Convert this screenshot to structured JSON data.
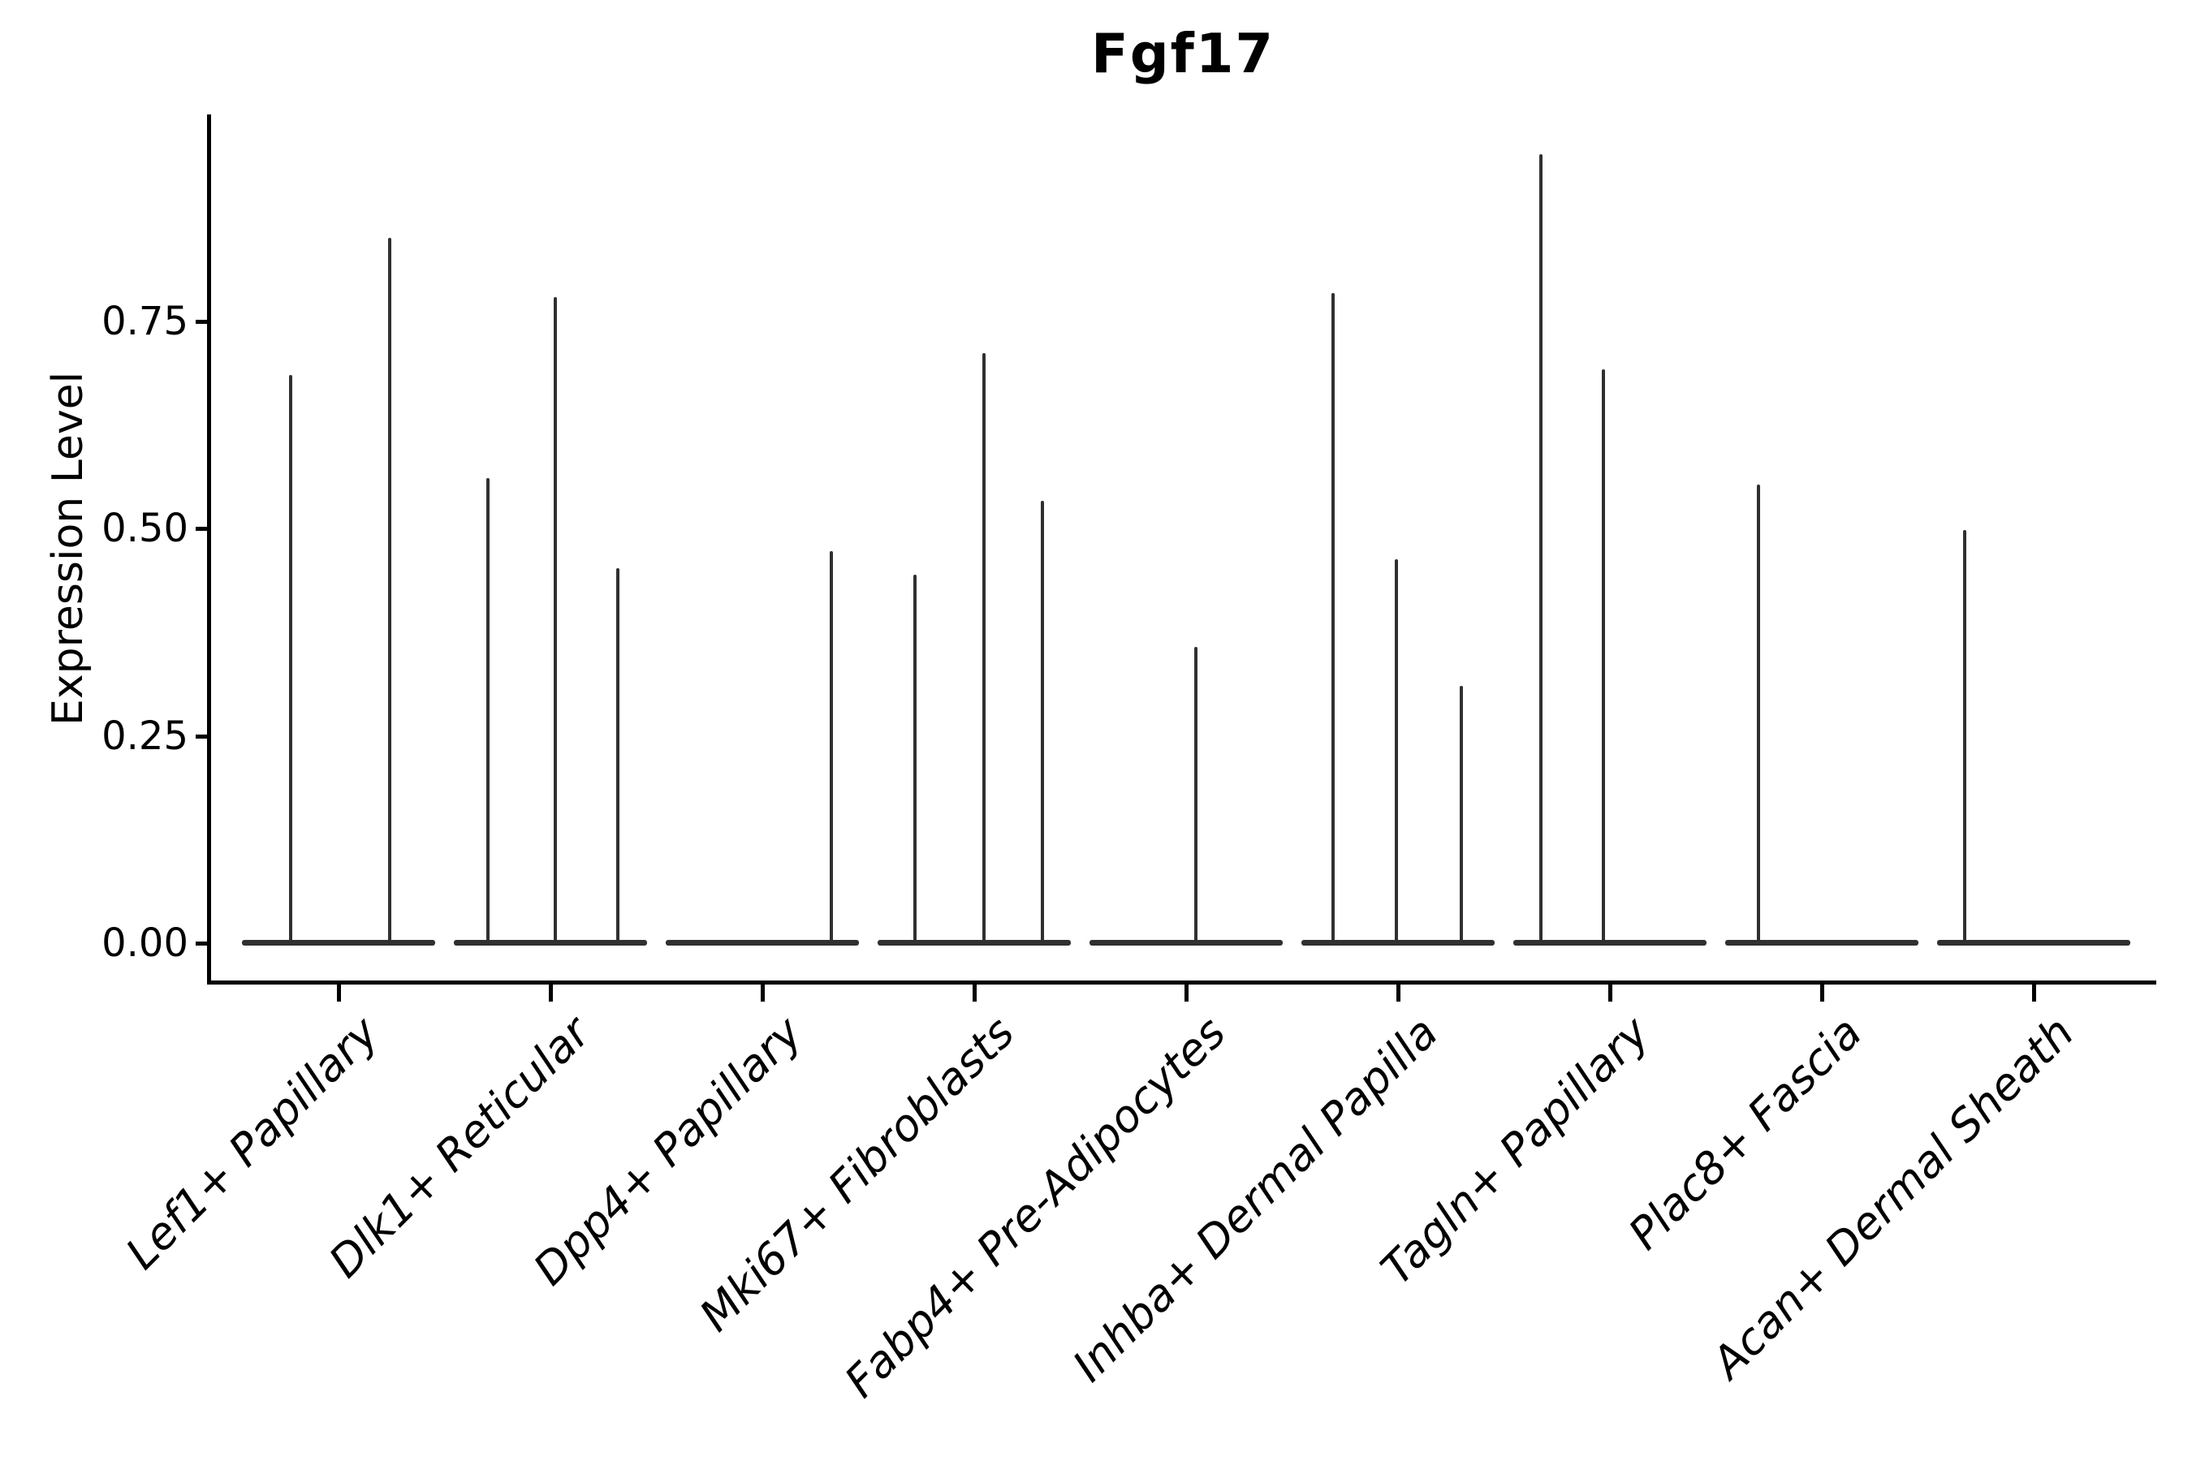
{
  "title": "Fgf17",
  "y_axis": {
    "label": "Expression Level",
    "tick_labels": [
      "0.75",
      "0.50",
      "0.25",
      "0.00"
    ]
  },
  "chart_data": {
    "type": "violin",
    "title": "Fgf17",
    "xlabel": "",
    "ylabel": "Expression Level",
    "ylim": [
      0,
      1.0
    ],
    "yticks": [
      0.75,
      0.5,
      0.25,
      0.0
    ],
    "grid": false,
    "legend": "none",
    "style": "collapsed violins: flat baseline at 0 with thin vertical density spikes",
    "line_color": "#303030",
    "axis_color": "#000000",
    "background": "#ffffff",
    "categories": [
      "Lef1+ Papillary",
      "Dlk1+ Reticular",
      "Dpp4+ Papillary",
      "Mki67+ Fibroblasts",
      "Fabp4+ Pre-Adipocytes",
      "Inhba+ Dermal Papilla",
      "Tagln+ Papillary",
      "Plac8+ Fascia",
      "Acan+ Dermal Sheath"
    ],
    "violins": [
      {
        "category": "Lef1+ Papillary",
        "baseline": 0,
        "spikes": [
          {
            "dx": -59,
            "max": 0.685
          },
          {
            "dx": 63,
            "max": 0.85
          }
        ]
      },
      {
        "category": "Dlk1+ Reticular",
        "baseline": 0,
        "spikes": [
          {
            "dx": -77,
            "max": 0.561
          },
          {
            "dx": 6,
            "max": 0.779
          },
          {
            "dx": 83,
            "max": 0.452
          }
        ]
      },
      {
        "category": "Dpp4+ Papillary",
        "baseline": 0,
        "spikes": [
          {
            "dx": 85,
            "max": 0.473
          }
        ]
      },
      {
        "category": "Mki67+ Fibroblasts",
        "baseline": 0,
        "spikes": [
          {
            "dx": -73,
            "max": 0.444
          },
          {
            "dx": 12,
            "max": 0.711
          },
          {
            "dx": 84,
            "max": 0.533
          }
        ]
      },
      {
        "category": "Fabp4+ Pre-Adipocytes",
        "baseline": 0,
        "spikes": [
          {
            "dx": 12,
            "max": 0.357
          }
        ]
      },
      {
        "category": "Inhba+ Dermal Papilla",
        "baseline": 0,
        "spikes": [
          {
            "dx": -80,
            "max": 0.784
          },
          {
            "dx": -2,
            "max": 0.463
          },
          {
            "dx": 78,
            "max": 0.31
          }
        ]
      },
      {
        "category": "Tagln+ Papillary",
        "baseline": 0,
        "spikes": [
          {
            "dx": -85,
            "max": 0.951
          },
          {
            "dx": -8,
            "max": 0.692
          }
        ]
      },
      {
        "category": "Plac8+ Fascia",
        "baseline": 0,
        "spikes": [
          {
            "dx": -78,
            "max": 0.553
          }
        ]
      },
      {
        "category": "Acan+ Dermal Sheath",
        "baseline": 0,
        "spikes": [
          {
            "dx": -85,
            "max": 0.498
          }
        ]
      }
    ]
  }
}
